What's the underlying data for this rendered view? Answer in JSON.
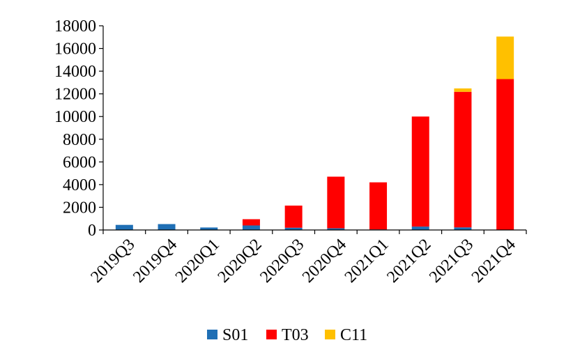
{
  "chart_data": {
    "type": "bar",
    "stacked": true,
    "title": "",
    "xlabel": "",
    "ylabel": "",
    "ylim": [
      0,
      18000
    ],
    "yticks": [
      0,
      2000,
      4000,
      6000,
      8000,
      10000,
      12000,
      14000,
      16000,
      18000
    ],
    "categories": [
      "2019Q3",
      "2019Q4",
      "2020Q1",
      "2020Q2",
      "2020Q3",
      "2020Q4",
      "2021Q1",
      "2021Q2",
      "2021Q3",
      "2021Q4"
    ],
    "series": [
      {
        "name": "S01",
        "color": "#1F6FB5",
        "values": [
          450,
          520,
          220,
          400,
          200,
          150,
          50,
          300,
          230,
          0
        ]
      },
      {
        "name": "T03",
        "color": "#FF0000",
        "values": [
          0,
          0,
          0,
          550,
          1950,
          4550,
          4150,
          9700,
          11950,
          13300
        ]
      },
      {
        "name": "C11",
        "color": "#FFC000",
        "values": [
          0,
          0,
          0,
          0,
          0,
          0,
          0,
          0,
          300,
          3750
        ]
      }
    ],
    "legend_position": "bottom",
    "grid": false
  }
}
